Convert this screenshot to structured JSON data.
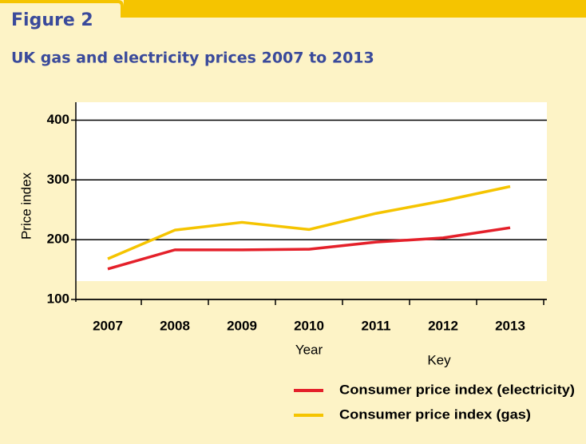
{
  "chart_data": {
    "type": "line",
    "figure_label": "Figure 2",
    "title": "UK gas and electricity prices 2007 to 2013",
    "x_label": "Year",
    "y_label": "Price index",
    "legend_title": "Key",
    "categories": [
      "2007",
      "2008",
      "2009",
      "2010",
      "2011",
      "2012",
      "2013"
    ],
    "series": [
      {
        "name": "Consumer price index (electricity)",
        "color": "#e4202a",
        "values": [
          151,
          183,
          183,
          184,
          196,
          203,
          220
        ]
      },
      {
        "name": "Consumer price index (gas)",
        "color": "#f5c400",
        "values": [
          168,
          216,
          229,
          217,
          244,
          265,
          289
        ]
      }
    ],
    "ylim": [
      100,
      430
    ],
    "yticks": [
      100,
      200,
      300,
      400
    ],
    "grid": true
  }
}
